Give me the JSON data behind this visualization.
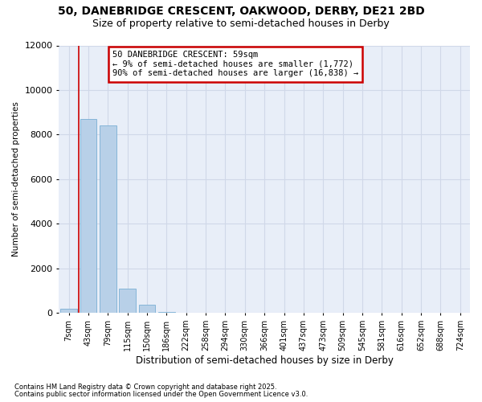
{
  "title_line1": "50, DANEBRIDGE CRESCENT, OAKWOOD, DERBY, DE21 2BD",
  "title_line2": "Size of property relative to semi-detached houses in Derby",
  "xlabel": "Distribution of semi-detached houses by size in Derby",
  "ylabel": "Number of semi-detached properties",
  "footnote1": "Contains HM Land Registry data © Crown copyright and database right 2025.",
  "footnote2": "Contains public sector information licensed under the Open Government Licence v3.0.",
  "annotation_title": "50 DANEBRIDGE CRESCENT: 59sqm",
  "annotation_line1": "← 9% of semi-detached houses are smaller (1,772)",
  "annotation_line2": "90% of semi-detached houses are larger (16,838) →",
  "bar_color": "#b8d0e8",
  "bar_edge_color": "#7aafd4",
  "plot_bg_color": "#e8eef8",
  "fig_bg_color": "#ffffff",
  "grid_color": "#d0d8e8",
  "red_line_color": "#cc0000",
  "annotation_box_edge": "#cc0000",
  "categories": [
    "7sqm",
    "43sqm",
    "79sqm",
    "115sqm",
    "150sqm",
    "186sqm",
    "222sqm",
    "258sqm",
    "294sqm",
    "330sqm",
    "366sqm",
    "401sqm",
    "437sqm",
    "473sqm",
    "509sqm",
    "545sqm",
    "581sqm",
    "616sqm",
    "652sqm",
    "688sqm",
    "724sqm"
  ],
  "values": [
    200,
    8700,
    8400,
    1100,
    380,
    50,
    5,
    0,
    0,
    0,
    0,
    0,
    0,
    0,
    0,
    0,
    0,
    0,
    0,
    0,
    0
  ],
  "ylim": [
    0,
    12000
  ],
  "yticks": [
    0,
    2000,
    4000,
    6000,
    8000,
    10000,
    12000
  ],
  "red_line_bar_index": 1,
  "title_fontsize": 10,
  "subtitle_fontsize": 9
}
